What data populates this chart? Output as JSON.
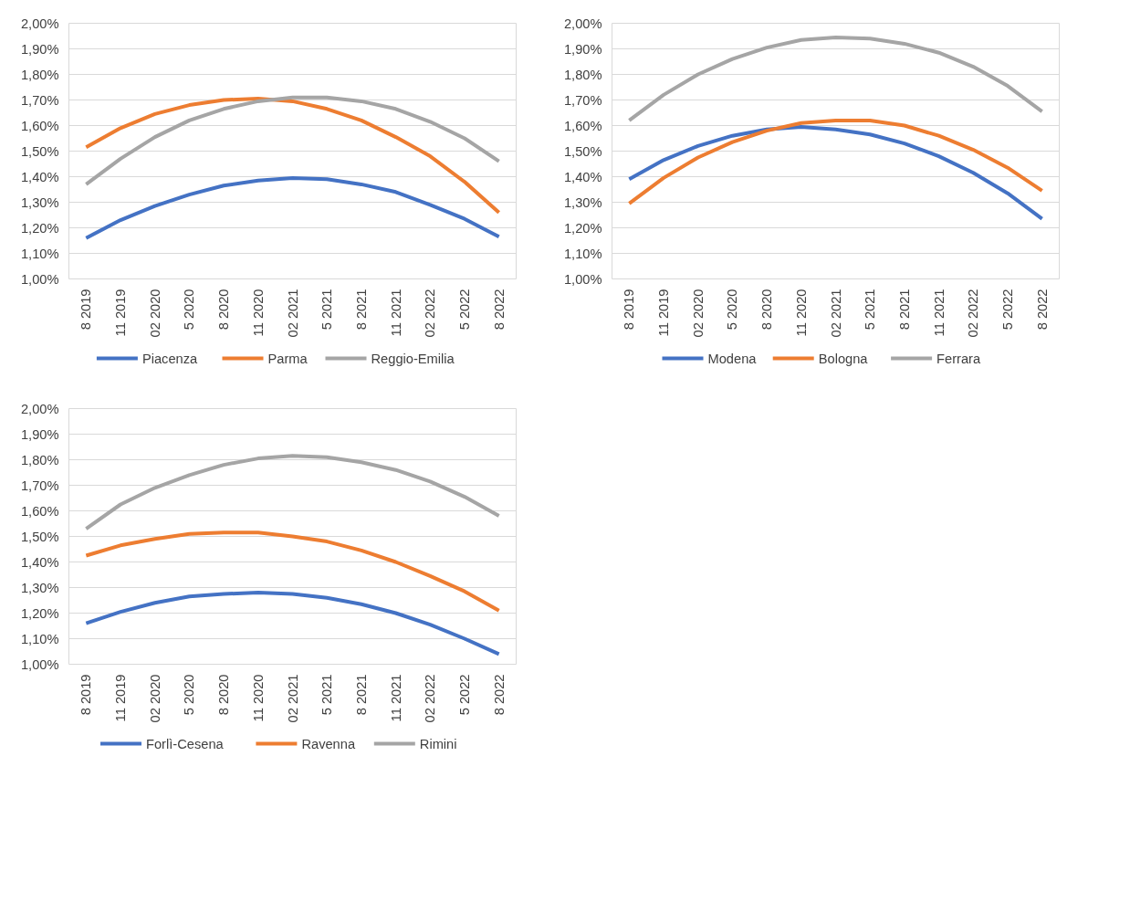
{
  "chart_data": [
    {
      "type": "line",
      "categories": [
        "8 2019",
        "11 2019",
        "02 2020",
        "5 2020",
        "8 2020",
        "11 2020",
        "02 2021",
        "5 2021",
        "8 2021",
        "11 2021",
        "02 2022",
        "5 2022",
        "8 2022"
      ],
      "ylim": [
        1.0,
        2.0
      ],
      "yticks": [
        {
          "value": 1.0,
          "label": "1,00%"
        },
        {
          "value": 1.1,
          "label": "1,10%"
        },
        {
          "value": 1.2,
          "label": "1,20%"
        },
        {
          "value": 1.3,
          "label": "1,30%"
        },
        {
          "value": 1.4,
          "label": "1,40%"
        },
        {
          "value": 1.5,
          "label": "1,50%"
        },
        {
          "value": 1.6,
          "label": "1,60%"
        },
        {
          "value": 1.7,
          "label": "1,70%"
        },
        {
          "value": 1.8,
          "label": "1,80%"
        },
        {
          "value": 1.9,
          "label": "1,90%"
        },
        {
          "value": 2.0,
          "label": "2,00%"
        }
      ],
      "grid": "y",
      "legend": "bottom",
      "line_style": "solid",
      "marker": "none",
      "series": [
        {
          "name": "Piacenza",
          "color": "#4472c4",
          "values": [
            1.16,
            1.23,
            1.285,
            1.33,
            1.365,
            1.385,
            1.395,
            1.39,
            1.37,
            1.34,
            1.29,
            1.235,
            1.165
          ]
        },
        {
          "name": "Parma",
          "color": "#ed7d31",
          "values": [
            1.515,
            1.59,
            1.645,
            1.68,
            1.7,
            1.705,
            1.695,
            1.665,
            1.62,
            1.555,
            1.48,
            1.38,
            1.26
          ]
        },
        {
          "name": "Reggio-Emilia",
          "color": "#a5a5a5",
          "values": [
            1.37,
            1.47,
            1.555,
            1.62,
            1.665,
            1.695,
            1.71,
            1.71,
            1.695,
            1.665,
            1.615,
            1.55,
            1.46
          ]
        }
      ]
    },
    {
      "type": "line",
      "categories": [
        "8 2019",
        "11 2019",
        "02 2020",
        "5 2020",
        "8 2020",
        "11 2020",
        "02 2021",
        "5 2021",
        "8 2021",
        "11 2021",
        "02 2022",
        "5 2022",
        "8 2022"
      ],
      "ylim": [
        1.0,
        2.0
      ],
      "yticks": [
        {
          "value": 1.0,
          "label": "1,00%"
        },
        {
          "value": 1.1,
          "label": "1,10%"
        },
        {
          "value": 1.2,
          "label": "1,20%"
        },
        {
          "value": 1.3,
          "label": "1,30%"
        },
        {
          "value": 1.4,
          "label": "1,40%"
        },
        {
          "value": 1.5,
          "label": "1,50%"
        },
        {
          "value": 1.6,
          "label": "1,60%"
        },
        {
          "value": 1.7,
          "label": "1,70%"
        },
        {
          "value": 1.8,
          "label": "1,80%"
        },
        {
          "value": 1.9,
          "label": "1,90%"
        },
        {
          "value": 2.0,
          "label": "2,00%"
        }
      ],
      "grid": "y",
      "legend": "bottom",
      "line_style": "solid",
      "marker": "none",
      "series": [
        {
          "name": "Modena",
          "color": "#4472c4",
          "values": [
            1.39,
            1.465,
            1.52,
            1.56,
            1.585,
            1.595,
            1.585,
            1.565,
            1.53,
            1.48,
            1.415,
            1.335,
            1.235
          ]
        },
        {
          "name": "Bologna",
          "color": "#ed7d31",
          "values": [
            1.295,
            1.395,
            1.475,
            1.535,
            1.58,
            1.61,
            1.62,
            1.62,
            1.6,
            1.56,
            1.505,
            1.435,
            1.345
          ]
        },
        {
          "name": "Ferrara",
          "color": "#a5a5a5",
          "values": [
            1.62,
            1.72,
            1.8,
            1.86,
            1.905,
            1.935,
            1.945,
            1.94,
            1.92,
            1.885,
            1.83,
            1.755,
            1.655
          ]
        }
      ]
    },
    {
      "type": "line",
      "categories": [
        "8 2019",
        "11 2019",
        "02 2020",
        "5 2020",
        "8 2020",
        "11 2020",
        "02 2021",
        "5 2021",
        "8 2021",
        "11 2021",
        "02 2022",
        "5 2022",
        "8 2022"
      ],
      "ylim": [
        1.0,
        2.0
      ],
      "yticks": [
        {
          "value": 1.0,
          "label": "1,00%"
        },
        {
          "value": 1.1,
          "label": "1,10%"
        },
        {
          "value": 1.2,
          "label": "1,20%"
        },
        {
          "value": 1.3,
          "label": "1,30%"
        },
        {
          "value": 1.4,
          "label": "1,40%"
        },
        {
          "value": 1.5,
          "label": "1,50%"
        },
        {
          "value": 1.6,
          "label": "1,60%"
        },
        {
          "value": 1.7,
          "label": "1,70%"
        },
        {
          "value": 1.8,
          "label": "1,80%"
        },
        {
          "value": 1.9,
          "label": "1,90%"
        },
        {
          "value": 2.0,
          "label": "2,00%"
        }
      ],
      "grid": "y",
      "legend": "bottom",
      "line_style": "solid",
      "marker": "none",
      "series": [
        {
          "name": "Forlì-Cesena",
          "color": "#4472c4",
          "values": [
            1.16,
            1.205,
            1.24,
            1.265,
            1.275,
            1.28,
            1.275,
            1.26,
            1.235,
            1.2,
            1.155,
            1.1,
            1.04
          ]
        },
        {
          "name": "Ravenna",
          "color": "#ed7d31",
          "values": [
            1.425,
            1.465,
            1.49,
            1.51,
            1.515,
            1.515,
            1.5,
            1.48,
            1.445,
            1.4,
            1.345,
            1.285,
            1.21
          ]
        },
        {
          "name": "Rimini",
          "color": "#a5a5a5",
          "values": [
            1.53,
            1.625,
            1.69,
            1.74,
            1.78,
            1.805,
            1.815,
            1.81,
            1.79,
            1.76,
            1.715,
            1.655,
            1.58
          ]
        }
      ]
    }
  ]
}
